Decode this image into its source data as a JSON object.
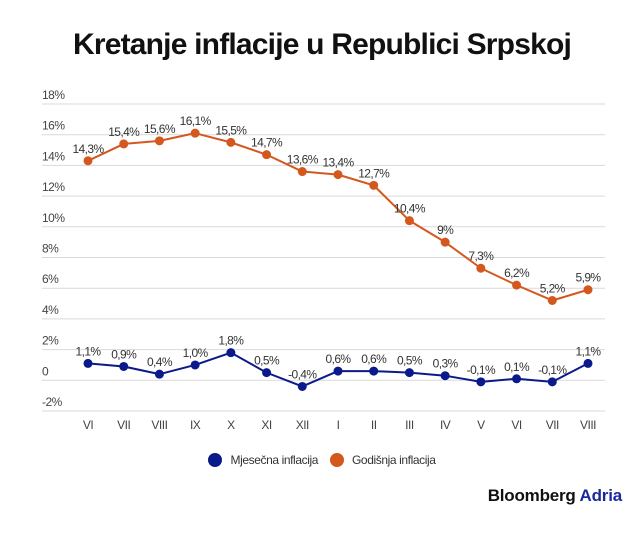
{
  "title": "Kretanje inflacije u Republici Srpskoj",
  "brand": {
    "name": "Bloomberg",
    "suffix": "Adria",
    "suffix_color": "#1a2a9e"
  },
  "legend": [
    {
      "label": "Mjesečna inflacija",
      "color": "#0a1a8a"
    },
    {
      "label": "Godišnja inflacija",
      "color": "#d4581e"
    }
  ],
  "chart_data": {
    "type": "line",
    "title": "Kretanje inflacije u Republici Srpskoj",
    "xlabel": "",
    "ylabel": "",
    "categories": [
      "VI",
      "VII",
      "VIII",
      "IX",
      "X",
      "XI",
      "XII",
      "I",
      "II",
      "III",
      "IV",
      "V",
      "VI",
      "VII",
      "VIII"
    ],
    "ylim": [
      -2,
      18
    ],
    "yticks": [
      -2,
      0,
      2,
      4,
      6,
      8,
      10,
      12,
      14,
      16,
      18
    ],
    "ytick_labels": [
      "-2%",
      "0",
      "2%",
      "4%",
      "6%",
      "8%",
      "10%",
      "12%",
      "14%",
      "16%",
      "18%"
    ],
    "grid": true,
    "legend_position": "bottom",
    "series": [
      {
        "name": "Mjesečna inflacija",
        "color": "#0a1a8a",
        "values": [
          1.1,
          0.9,
          0.4,
          1.0,
          1.8,
          0.5,
          -0.4,
          0.6,
          0.6,
          0.5,
          0.3,
          -0.1,
          0.1,
          -0.1,
          1.1
        ],
        "labels": [
          "1,1%",
          "0,9%",
          "0,4%",
          "1,0%",
          "1,8%",
          "0,5%",
          "-0,4%",
          "0,6%",
          "0,6%",
          "0,5%",
          "0,3%",
          "-0,1%",
          "0,1%",
          "-0,1%",
          "1,1%"
        ]
      },
      {
        "name": "Godišnja inflacija",
        "color": "#d4581e",
        "values": [
          14.3,
          15.4,
          15.6,
          16.1,
          15.5,
          14.7,
          13.6,
          13.4,
          12.7,
          10.4,
          9.0,
          7.3,
          6.2,
          5.2,
          5.9
        ],
        "labels": [
          "14,3%",
          "15,4%",
          "15,6%",
          "16,1%",
          "15,5%",
          "14,7%",
          "13,6%",
          "13,4%",
          "12,7%",
          "10,4%",
          "9%",
          "7,3%",
          "6,2%",
          "5,2%",
          "5,9%"
        ]
      }
    ]
  }
}
